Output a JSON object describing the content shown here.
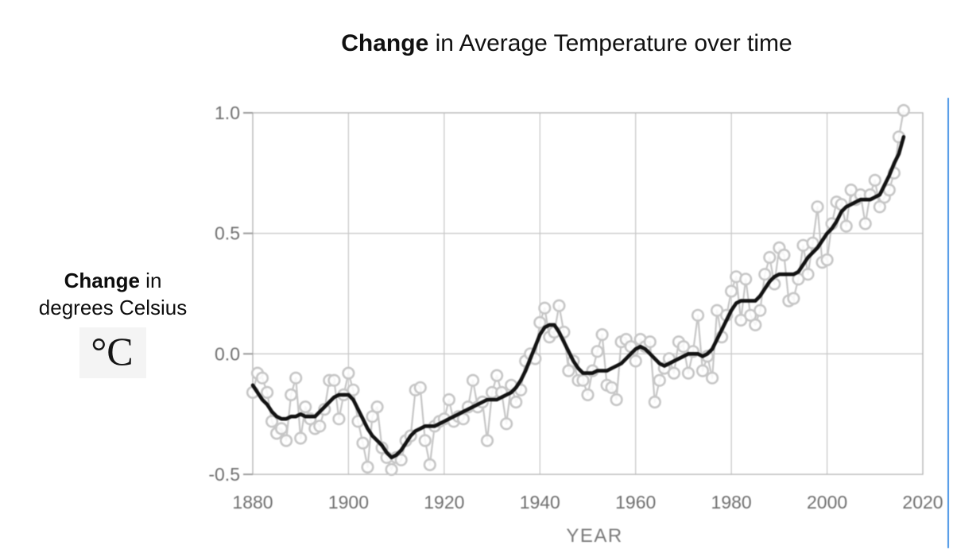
{
  "title": {
    "bold": "Change",
    "rest": " in Average Temperature over time"
  },
  "y_axis_label": {
    "line1_bold": "Change",
    "line1_rest": " in",
    "line2": "degrees Celsius",
    "unit": "°C"
  },
  "colors": {
    "plot_border": "#b7b7b7",
    "grid_line": "#c9c9c9",
    "tick_text": "#6f6f6f",
    "axis_title_text": "#7a7a7a",
    "annual_series": "#c6c6c6",
    "trend_line": "#121212",
    "blue_rule": "#5b9fe8",
    "unit_badge_bg": "#f4f4f4"
  },
  "chart_data": {
    "type": "scatter",
    "title": "Change in Average Temperature over time",
    "xlabel": "YEAR",
    "ylabel": "Change in degrees Celsius (°C)",
    "xlim": [
      1880,
      2020
    ],
    "ylim": [
      -0.5,
      1.0
    ],
    "grid": true,
    "legend": "none",
    "x_ticks": [
      {
        "label": "1880",
        "value": 1880
      },
      {
        "label": "1900",
        "value": 1900
      },
      {
        "label": "1920",
        "value": 1920
      },
      {
        "label": "1940",
        "value": 1940
      },
      {
        "label": "1960",
        "value": 1960
      },
      {
        "label": "1980",
        "value": 1980
      },
      {
        "label": "2000",
        "value": 2000
      },
      {
        "label": "2020",
        "value": 2020
      }
    ],
    "y_ticks": [
      {
        "label": "1.0",
        "value": 1.0
      },
      {
        "label": "0.5",
        "value": 0.5
      },
      {
        "label": "0.0",
        "value": 0.0
      },
      {
        "label": "-0.5",
        "value": -0.5
      }
    ],
    "start_year": 1880,
    "end_year": 2016,
    "series": [
      {
        "name": "annual-mean",
        "style": "open-circles-with-connecting-line",
        "values": [
          -0.16,
          -0.08,
          -0.1,
          -0.16,
          -0.28,
          -0.33,
          -0.31,
          -0.36,
          -0.17,
          -0.1,
          -0.35,
          -0.22,
          -0.27,
          -0.31,
          -0.3,
          -0.23,
          -0.11,
          -0.11,
          -0.27,
          -0.17,
          -0.08,
          -0.15,
          -0.28,
          -0.37,
          -0.47,
          -0.26,
          -0.22,
          -0.39,
          -0.43,
          -0.48,
          -0.43,
          -0.44,
          -0.36,
          -0.34,
          -0.15,
          -0.14,
          -0.36,
          -0.46,
          -0.3,
          -0.28,
          -0.27,
          -0.19,
          -0.28,
          -0.26,
          -0.27,
          -0.22,
          -0.11,
          -0.22,
          -0.2,
          -0.36,
          -0.16,
          -0.09,
          -0.16,
          -0.29,
          -0.13,
          -0.2,
          -0.15,
          -0.03,
          0.0,
          -0.02,
          0.13,
          0.19,
          0.07,
          0.09,
          0.2,
          0.09,
          -0.07,
          -0.03,
          -0.11,
          -0.11,
          -0.17,
          -0.07,
          0.01,
          0.08,
          -0.13,
          -0.14,
          -0.19,
          0.05,
          0.06,
          0.03,
          -0.03,
          0.06,
          0.03,
          0.05,
          -0.2,
          -0.11,
          -0.06,
          -0.02,
          -0.08,
          0.05,
          0.03,
          -0.08,
          0.01,
          0.16,
          -0.07,
          -0.01,
          -0.1,
          0.18,
          0.07,
          0.16,
          0.26,
          0.32,
          0.14,
          0.31,
          0.16,
          0.12,
          0.18,
          0.33,
          0.4,
          0.29,
          0.44,
          0.41,
          0.22,
          0.23,
          0.31,
          0.45,
          0.33,
          0.46,
          0.61,
          0.38,
          0.39,
          0.54,
          0.63,
          0.62,
          0.53,
          0.68,
          0.64,
          0.66,
          0.54,
          0.66,
          0.72,
          0.61,
          0.65,
          0.68,
          0.75,
          0.9,
          1.01
        ]
      },
      {
        "name": "lowess-smoothing",
        "style": "thick-black-line",
        "values": [
          -0.13,
          -0.16,
          -0.19,
          -0.21,
          -0.24,
          -0.26,
          -0.27,
          -0.27,
          -0.26,
          -0.26,
          -0.25,
          -0.26,
          -0.26,
          -0.26,
          -0.24,
          -0.22,
          -0.2,
          -0.18,
          -0.17,
          -0.17,
          -0.17,
          -0.19,
          -0.23,
          -0.27,
          -0.31,
          -0.34,
          -0.36,
          -0.38,
          -0.41,
          -0.43,
          -0.42,
          -0.4,
          -0.37,
          -0.34,
          -0.32,
          -0.31,
          -0.3,
          -0.3,
          -0.3,
          -0.29,
          -0.28,
          -0.27,
          -0.26,
          -0.25,
          -0.24,
          -0.23,
          -0.22,
          -0.21,
          -0.2,
          -0.19,
          -0.19,
          -0.19,
          -0.18,
          -0.17,
          -0.16,
          -0.14,
          -0.11,
          -0.07,
          -0.02,
          0.03,
          0.08,
          0.11,
          0.12,
          0.12,
          0.09,
          0.05,
          0.01,
          -0.03,
          -0.06,
          -0.08,
          -0.08,
          -0.08,
          -0.07,
          -0.07,
          -0.07,
          -0.06,
          -0.05,
          -0.04,
          -0.02,
          0.0,
          0.02,
          0.03,
          0.02,
          0.0,
          -0.02,
          -0.04,
          -0.05,
          -0.04,
          -0.03,
          -0.02,
          -0.01,
          0.0,
          0.0,
          0.0,
          -0.01,
          0.0,
          0.02,
          0.06,
          0.1,
          0.14,
          0.18,
          0.21,
          0.22,
          0.22,
          0.22,
          0.22,
          0.24,
          0.27,
          0.3,
          0.32,
          0.33,
          0.33,
          0.33,
          0.33,
          0.34,
          0.37,
          0.4,
          0.42,
          0.44,
          0.47,
          0.5,
          0.52,
          0.55,
          0.59,
          0.61,
          0.62,
          0.63,
          0.64,
          0.64,
          0.64,
          0.65,
          0.66,
          0.7,
          0.74,
          0.79,
          0.83,
          0.9
        ]
      }
    ]
  }
}
